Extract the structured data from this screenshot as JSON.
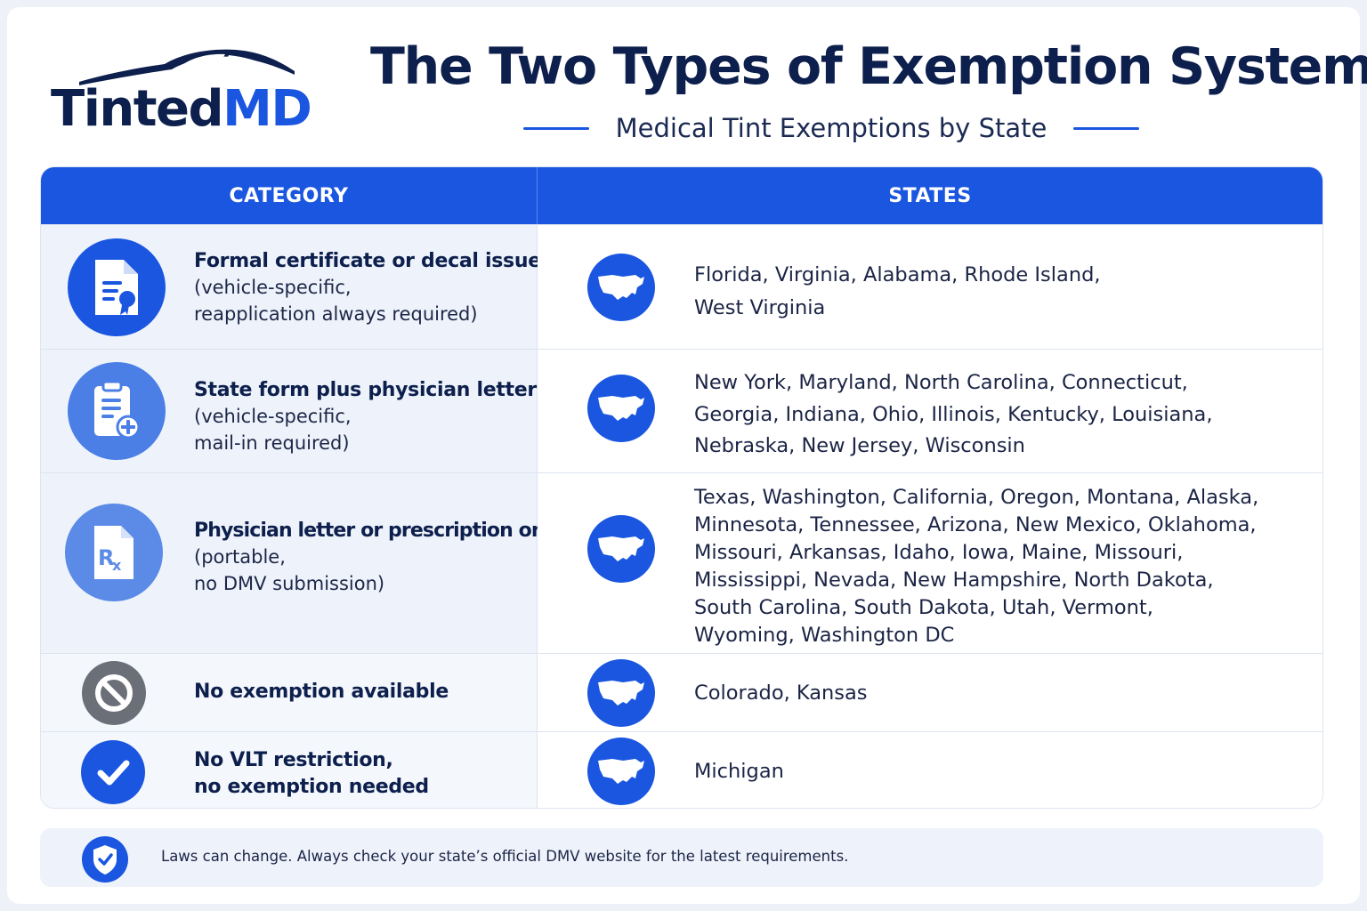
{
  "logo": {
    "part1": "Tinted",
    "part2": "MD"
  },
  "header": {
    "title": "The Two Types of Exemption Systems",
    "subtitle": "Medical Tint Exemptions by State"
  },
  "table": {
    "columns": [
      "CATEGORY",
      "STATES"
    ],
    "rows": [
      {
        "icon": "certificate-document-icon",
        "title": "Formal certificate or decal issued",
        "sub": [
          "(vehicle-specific,",
          "reapplication always required)"
        ],
        "states": [
          "Florida, Virginia, Alabama, Rhode Island,",
          "West Virginia"
        ]
      },
      {
        "icon": "clipboard-plus-icon",
        "title": "State form plus physician letter",
        "sub": [
          "(vehicle-specific,",
          "mail-in required)"
        ],
        "states": [
          "New York, Maryland, North Carolina, Connecticut,",
          "Georgia, Indiana, Ohio, Illinois, Kentucky, Louisiana,",
          "Nebraska, New Jersey, Wisconsin"
        ]
      },
      {
        "icon": "prescription-rx-icon",
        "title": "Physician letter or prescription only",
        "sub": [
          "(portable,",
          "no DMV submission)"
        ],
        "states": [
          "Texas, Washington, California, Oregon, Montana, Alaska,",
          "Minnesota, Tennessee, Arizona, New Mexico, Oklahoma,",
          "Missouri, Arkansas, Idaho, Iowa, Maine, Missouri,",
          "Mississippi, Nevada, New Hampshire, North Dakota,",
          "South Carolina, South Dakota, Utah, Vermont,",
          "Wyoming, Washington DC"
        ]
      },
      {
        "icon": "prohibited-icon",
        "title": "No exemption available",
        "sub": [],
        "states": [
          "Colorado, Kansas"
        ]
      },
      {
        "icon": "checkmark-icon",
        "title": [
          "No VLT restriction,",
          "no exemption needed"
        ],
        "sub": [],
        "states": [
          "Michigan"
        ]
      }
    ]
  },
  "footer": {
    "icon": "shield-check-icon",
    "text": "Laws can change. Always check your state’s official DMV website for the latest requirements."
  },
  "colors": {
    "accent": "#1a56e0",
    "navy": "#0d1f4c",
    "gray_icon": "#6b6f78"
  }
}
